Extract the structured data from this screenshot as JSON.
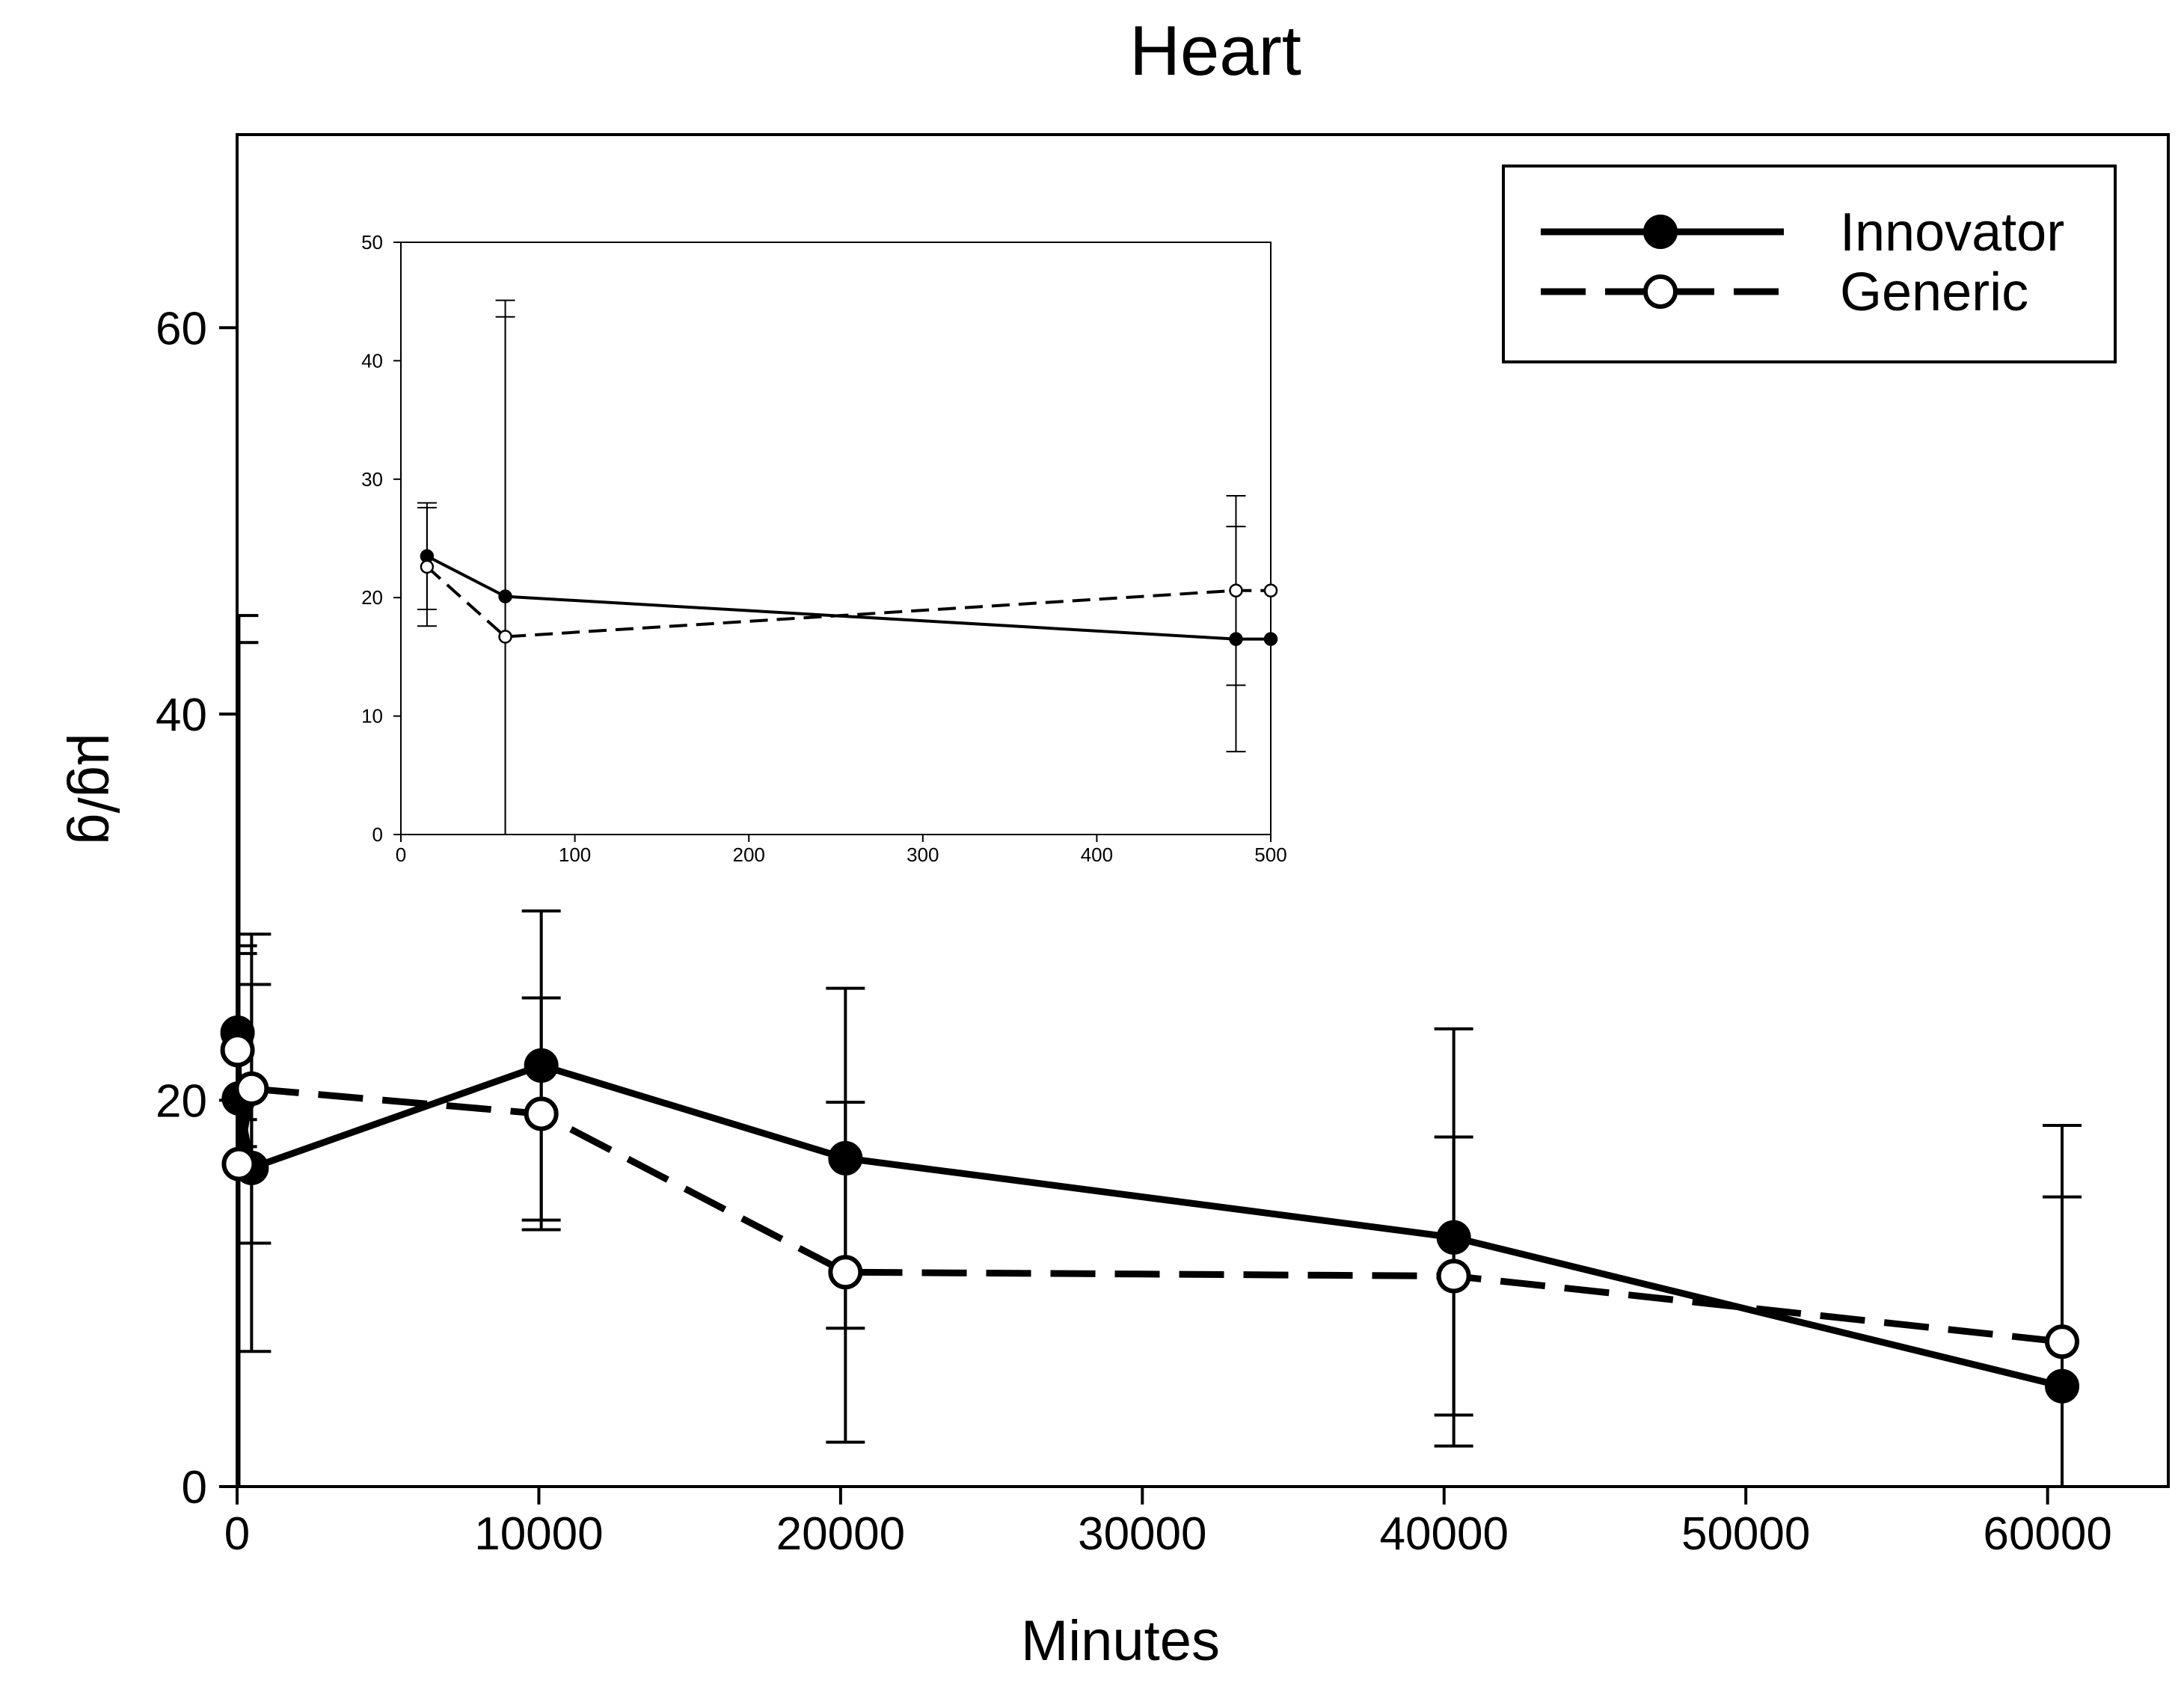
{
  "chart_data": [
    {
      "type": "line",
      "title": "Heart",
      "xlabel": "Minutes",
      "ylabel": "µg/g",
      "xlim": [
        0,
        64000
      ],
      "ylim": [
        0,
        70
      ],
      "xticks": [
        0,
        10000,
        20000,
        30000,
        40000,
        50000,
        60000
      ],
      "yticks": [
        0,
        20,
        40,
        60
      ],
      "legend": "top-right",
      "series": [
        {
          "name": "Innovator",
          "style": "solid",
          "marker": "filled-circle",
          "x": [
            15,
            60,
            480,
            10080,
            20160,
            40320,
            60480
          ],
          "y": [
            23.5,
            20.1,
            16.5,
            21.8,
            17.0,
            12.9,
            5.2
          ],
          "err": [
            4.5,
            25.0,
            9.5,
            8.0,
            8.8,
            10.8,
            13.5
          ]
        },
        {
          "name": "Generic",
          "style": "dashed",
          "marker": "open-circle",
          "x": [
            15,
            60,
            480,
            10080,
            20160,
            40320,
            60480
          ],
          "y": [
            22.6,
            16.7,
            20.6,
            19.3,
            11.1,
            10.9,
            7.5
          ],
          "err": [
            5.0,
            27.0,
            8.0,
            6.0,
            8.8,
            7.2,
            7.5
          ]
        }
      ]
    },
    {
      "type": "line",
      "title": "",
      "xlabel": "",
      "ylabel": "",
      "xlim": [
        0,
        500
      ],
      "ylim": [
        0,
        50
      ],
      "xticks": [
        0,
        100,
        200,
        300,
        400,
        500
      ],
      "yticks": [
        0,
        10,
        20,
        30,
        40,
        50
      ],
      "series": [
        {
          "name": "Innovator",
          "style": "solid",
          "marker": "filled-circle",
          "x": [
            15,
            60,
            480,
            500
          ],
          "y": [
            23.5,
            20.1,
            16.5,
            16.5
          ],
          "err": [
            4.5,
            25.0,
            9.5,
            null
          ]
        },
        {
          "name": "Generic",
          "style": "dashed",
          "marker": "open-circle",
          "x": [
            15,
            60,
            480,
            500
          ],
          "y": [
            22.6,
            16.7,
            20.6,
            20.6
          ],
          "err": [
            5.0,
            27.0,
            8.0,
            null
          ]
        }
      ]
    }
  ]
}
